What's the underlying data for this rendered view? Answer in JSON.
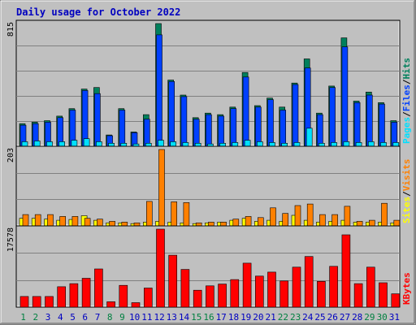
{
  "title": "Daily usage for October 2022",
  "colors": {
    "background": "#c0c0c0",
    "plot_bg": "#c0c0c0",
    "hits": "#00805c",
    "files": "#0040ff",
    "pages": "#00e0ff",
    "visits": "#ff8000",
    "sites": "#ffff00",
    "kbytes": "#ff0000",
    "title": "#0000c0",
    "day_label_green": "#008040",
    "day_label_blue": "#0000c0"
  },
  "chart_data": [
    {
      "type": "bar",
      "name": "hits-files-pages",
      "ymax_label": "815",
      "ymax": 815,
      "legend": [
        "Pages",
        "Files",
        "Hits"
      ],
      "legend_separator": "/",
      "categories": [
        "1",
        "2",
        "3",
        "4",
        "5",
        "6",
        "7",
        "8",
        "9",
        "10",
        "11",
        "12",
        "13",
        "14",
        "15",
        "16",
        "17",
        "18",
        "19",
        "20",
        "21",
        "22",
        "23",
        "24",
        "25",
        "26",
        "27",
        "28",
        "29",
        "30",
        "31"
      ],
      "series": [
        {
          "name": "Hits",
          "values": [
            150,
            160,
            170,
            200,
            250,
            380,
            390,
            75,
            250,
            95,
            210,
            815,
            440,
            340,
            190,
            220,
            210,
            260,
            490,
            270,
            320,
            260,
            420,
            580,
            220,
            400,
            720,
            300,
            360,
            290,
            170
          ]
        },
        {
          "name": "Files",
          "values": [
            140,
            150,
            160,
            190,
            240,
            370,
            350,
            70,
            240,
            90,
            180,
            740,
            430,
            330,
            180,
            210,
            200,
            250,
            460,
            260,
            310,
            240,
            410,
            520,
            210,
            390,
            660,
            290,
            340,
            280,
            160
          ]
        },
        {
          "name": "Pages",
          "values": [
            30,
            35,
            30,
            30,
            40,
            50,
            30,
            20,
            20,
            15,
            20,
            40,
            30,
            25,
            20,
            15,
            20,
            25,
            40,
            30,
            25,
            20,
            25,
            120,
            20,
            25,
            30,
            25,
            30,
            25,
            25
          ]
        }
      ]
    },
    {
      "type": "bar",
      "name": "visits-sites",
      "ymax_label": "203",
      "ymax": 203,
      "legend": [
        "Sites",
        "Visits"
      ],
      "legend_separator": "/",
      "categories": [
        "1",
        "2",
        "3",
        "4",
        "5",
        "6",
        "7",
        "8",
        "9",
        "10",
        "11",
        "12",
        "13",
        "14",
        "15",
        "16",
        "17",
        "18",
        "19",
        "20",
        "21",
        "22",
        "23",
        "24",
        "25",
        "26",
        "27",
        "28",
        "29",
        "30",
        "31"
      ],
      "series": [
        {
          "name": "Visits",
          "values": [
            30,
            30,
            30,
            25,
            25,
            20,
            18,
            12,
            10,
            8,
            65,
            203,
            64,
            62,
            8,
            10,
            10,
            18,
            25,
            22,
            48,
            33,
            54,
            58,
            30,
            30,
            52,
            12,
            15,
            60,
            15
          ]
        },
        {
          "name": "Sites",
          "values": [
            20,
            20,
            18,
            15,
            17,
            27,
            15,
            8,
            8,
            6,
            10,
            12,
            10,
            8,
            6,
            8,
            10,
            15,
            20,
            12,
            15,
            12,
            28,
            15,
            10,
            12,
            15,
            10,
            10,
            10,
            8
          ]
        }
      ]
    },
    {
      "type": "bar",
      "name": "kbytes",
      "ymax_label": "17578",
      "ymax": 17578,
      "legend": [
        "KBytes"
      ],
      "categories": [
        "1",
        "2",
        "3",
        "4",
        "5",
        "6",
        "7",
        "8",
        "9",
        "10",
        "11",
        "12",
        "13",
        "14",
        "15",
        "16",
        "17",
        "18",
        "19",
        "20",
        "21",
        "22",
        "23",
        "24",
        "25",
        "26",
        "27",
        "28",
        "29",
        "30",
        "31"
      ],
      "series": [
        {
          "name": "KBytes",
          "values": [
            2400,
            2400,
            2400,
            4600,
            5300,
            6500,
            8600,
            1200,
            4900,
            1000,
            4300,
            17578,
            11700,
            8500,
            3800,
            4800,
            5200,
            6200,
            9900,
            7000,
            7900,
            5900,
            9000,
            11400,
            5800,
            9200,
            16300,
            5300,
            9000,
            5500,
            3000
          ]
        }
      ]
    }
  ],
  "day_label_colors": [
    "#008040",
    "#008040",
    "#0000c0",
    "#0000c0",
    "#0000c0",
    "#0000c0",
    "#0000c0",
    "#008040",
    "#008040",
    "#0000c0",
    "#0000c0",
    "#0000c0",
    "#0000c0",
    "#0000c0",
    "#008040",
    "#008040",
    "#0000c0",
    "#0000c0",
    "#0000c0",
    "#0000c0",
    "#0000c0",
    "#008040",
    "#008040",
    "#0000c0",
    "#0000c0",
    "#0000c0",
    "#0000c0",
    "#0000c0",
    "#008040",
    "#008040",
    "#0000c0"
  ]
}
